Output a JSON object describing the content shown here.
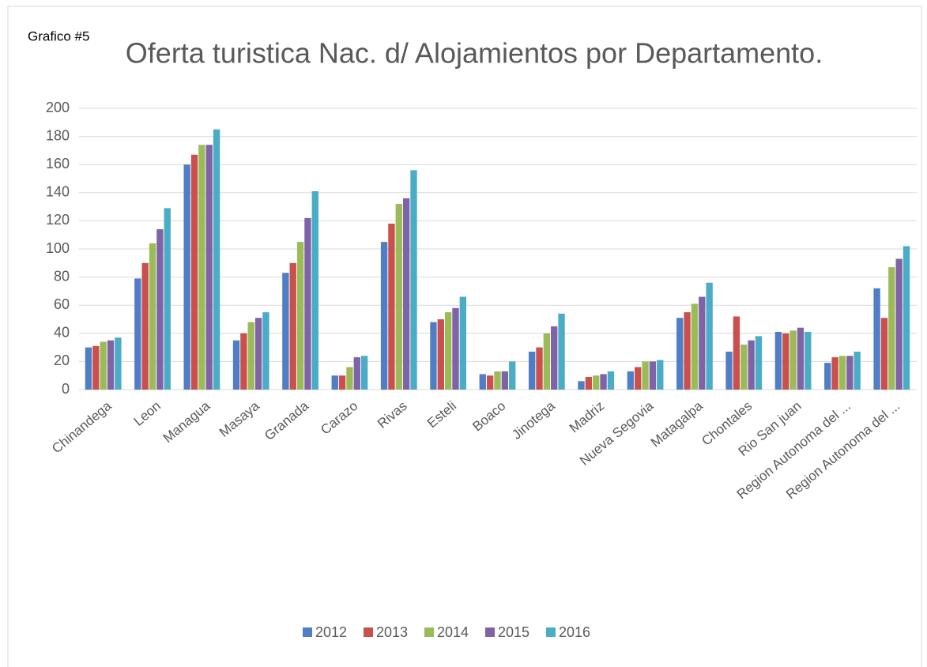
{
  "chart_data": {
    "type": "bar",
    "label": "Grafico #5",
    "title": "Oferta turistica Nac. d/ Alojamientos por Departamento.",
    "categories": [
      "Chinandega",
      "Leon",
      "Managua",
      "Masaya",
      "Granada",
      "Carazo",
      "Rivas",
      "Esteli",
      "Boaco",
      "Jinotega",
      "Madriz",
      "Nueva Segovia",
      "Matagalpa",
      "Chontales",
      "Rio San juan",
      "Region Autonoma del ...",
      "Region Autonoma del ..."
    ],
    "series": [
      {
        "name": "2012",
        "color": "#4f7ec6",
        "values": [
          30,
          79,
          160,
          35,
          83,
          10,
          105,
          48,
          11,
          27,
          6,
          13,
          51,
          27,
          41,
          19,
          72
        ]
      },
      {
        "name": "2013",
        "color": "#c9504d",
        "values": [
          31,
          90,
          167,
          40,
          90,
          10,
          118,
          50,
          10,
          30,
          9,
          16,
          55,
          52,
          40,
          23,
          51
        ]
      },
      {
        "name": "2014",
        "color": "#9bbb59",
        "values": [
          34,
          104,
          174,
          48,
          105,
          16,
          132,
          55,
          13,
          40,
          10,
          20,
          61,
          32,
          42,
          24,
          87
        ]
      },
      {
        "name": "2015",
        "color": "#7f63a6",
        "values": [
          35,
          114,
          174,
          51,
          122,
          23,
          136,
          58,
          13,
          45,
          11,
          20,
          66,
          35,
          44,
          24,
          93
        ]
      },
      {
        "name": "2016",
        "color": "#4bacc6",
        "values": [
          37,
          129,
          185,
          55,
          141,
          24,
          156,
          66,
          20,
          54,
          13,
          21,
          76,
          38,
          41,
          27,
          102
        ]
      }
    ],
    "ylim": [
      0,
      200
    ],
    "yticks": [
      0,
      20,
      40,
      60,
      80,
      100,
      120,
      140,
      160,
      180,
      200
    ],
    "grid": true,
    "legend": "bottom"
  }
}
